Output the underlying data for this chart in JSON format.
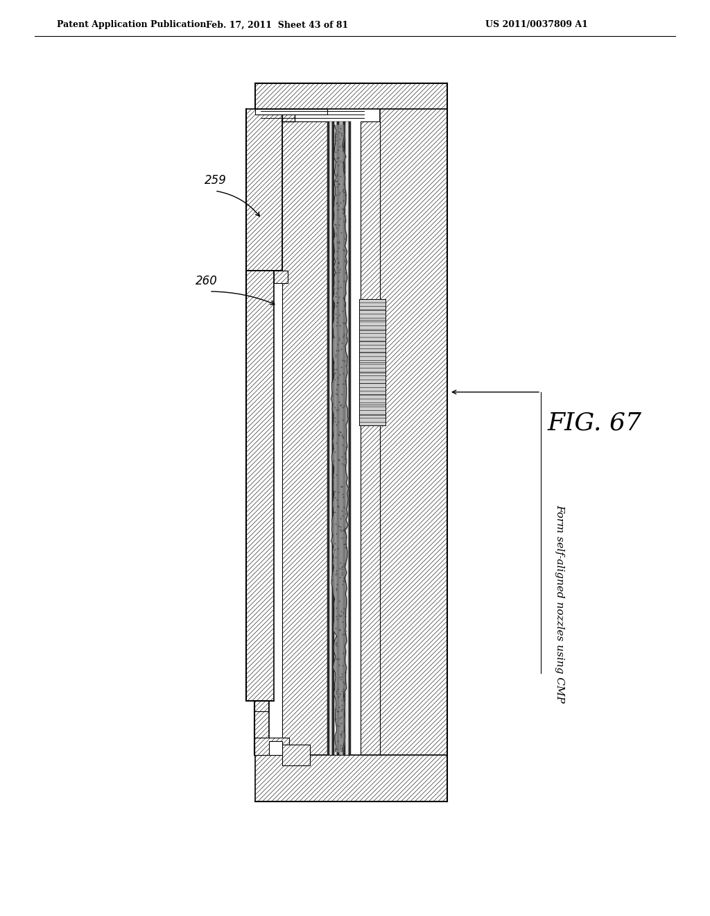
{
  "page_width": 10.24,
  "page_height": 13.2,
  "background_color": "#ffffff",
  "header_text_left": "Patent Application Publication",
  "header_text_mid": "Feb. 17, 2011  Sheet 43 of 81",
  "header_text_right": "US 2011/0037809 A1",
  "fig_label": "FIG. 67",
  "annotation_text": "Form self-aligned nozzles using CMP",
  "label_259": "259",
  "label_260": "260"
}
